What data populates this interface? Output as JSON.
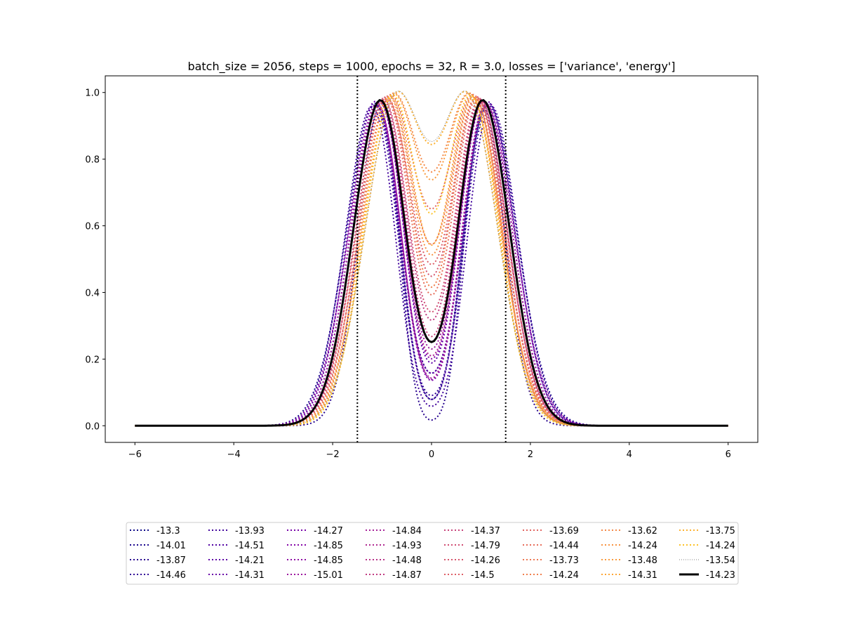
{
  "chart_data": {
    "type": "line",
    "title": "batch_size = 2056, steps = 1000, epochs = 32, R = 3.0, losses = ['variance', 'energy']",
    "xlabel": "",
    "ylabel": "",
    "xlim": [
      -6.6,
      6.6
    ],
    "ylim": [
      -0.05,
      1.05
    ],
    "xticks": [
      -6,
      -4,
      -2,
      0,
      2,
      4,
      6
    ],
    "yticks": [
      0.0,
      0.2,
      0.4,
      0.6,
      0.8,
      1.0
    ],
    "xtick_labels": [
      "−6",
      "−4",
      "−2",
      "0",
      "2",
      "4",
      "6"
    ],
    "ytick_labels": [
      "0.0",
      "0.2",
      "0.4",
      "0.6",
      "0.8",
      "1.0"
    ],
    "grid": false,
    "legend_position": "below",
    "vlines": [
      -1.5,
      1.5
    ],
    "series": [
      {
        "name": "-13.3",
        "color": "#0d0887",
        "style": "dotted",
        "c": 1.05,
        "w": 0.8,
        "d": 0.78
      },
      {
        "name": "-14.01",
        "color": "#1b068d",
        "style": "dotted",
        "c": 1.1,
        "w": 0.85,
        "d": 0.58
      },
      {
        "name": "-13.87",
        "color": "#28058f",
        "style": "dotted",
        "c": 1.0,
        "w": 0.65,
        "d": 0.91
      },
      {
        "name": "-14.46",
        "color": "#330597",
        "style": "dotted",
        "c": 1.1,
        "w": 0.8,
        "d": 0.7
      },
      {
        "name": "-13.93",
        "color": "#41049d",
        "style": "dotted",
        "c": 1.15,
        "w": 0.8,
        "d": 0.77
      },
      {
        "name": "-14.51",
        "color": "#5102a3",
        "style": "dotted",
        "c": 1.05,
        "w": 0.75,
        "d": 0.72
      },
      {
        "name": "-14.21",
        "color": "#5e01a6",
        "style": "dotted",
        "c": 1.0,
        "w": 0.8,
        "d": 0.55
      },
      {
        "name": "-14.31",
        "color": "#6a00a8",
        "style": "dotted",
        "c": 1.1,
        "w": 0.8,
        "d": 0.48
      },
      {
        "name": "-14.27",
        "color": "#7701a8",
        "style": "dotted",
        "c": 1.05,
        "w": 0.8,
        "d": 0.62
      },
      {
        "name": "-14.85",
        "color": "#8405a7",
        "style": "dotted",
        "c": 1.0,
        "w": 0.8,
        "d": 0.52
      },
      {
        "name": "-14.85",
        "color": "#8f0da4",
        "style": "dotted",
        "c": 1.05,
        "w": 0.85,
        "d": 0.68
      },
      {
        "name": "-15.01",
        "color": "#9c179e",
        "style": "dotted",
        "c": 1.0,
        "w": 0.8,
        "d": 0.45
      },
      {
        "name": "-14.84",
        "color": "#a62098",
        "style": "dotted",
        "c": 1.05,
        "w": 0.8,
        "d": 0.6
      },
      {
        "name": "-14.93",
        "color": "#b02991",
        "style": "dotted",
        "c": 1.0,
        "w": 0.8,
        "d": 0.5
      },
      {
        "name": "-14.48",
        "color": "#b83289",
        "style": "dotted",
        "c": 1.0,
        "w": 0.8,
        "d": 0.4
      },
      {
        "name": "-14.87",
        "color": "#c13b82",
        "style": "dotted",
        "c": 0.95,
        "w": 0.8,
        "d": 0.35
      },
      {
        "name": "-14.37",
        "color": "#c8437b",
        "style": "dotted",
        "c": 0.95,
        "w": 0.8,
        "d": 0.45
      },
      {
        "name": "-14.79",
        "color": "#d04d73",
        "style": "dotted",
        "c": 0.95,
        "w": 0.8,
        "d": 0.3
      },
      {
        "name": "-14.26",
        "color": "#d6556d",
        "style": "dotted",
        "c": 0.9,
        "w": 0.8,
        "d": 0.2
      },
      {
        "name": "-14.5",
        "color": "#dd5e66",
        "style": "dotted",
        "c": 0.9,
        "w": 0.85,
        "d": 0.25
      },
      {
        "name": "-13.69",
        "color": "#e26561",
        "style": "dotted",
        "c": 0.85,
        "w": 0.85,
        "d": 0.1
      },
      {
        "name": "-14.44",
        "color": "#e76e5b",
        "style": "dotted",
        "c": 0.9,
        "w": 0.8,
        "d": 0.3
      },
      {
        "name": "-13.73",
        "color": "#ec7853",
        "style": "dotted",
        "c": 0.85,
        "w": 0.8,
        "d": 0.15
      },
      {
        "name": "-14.24",
        "color": "#f0804e",
        "style": "dotted",
        "c": 0.85,
        "w": 0.8,
        "d": 0.35
      },
      {
        "name": "-13.62",
        "color": "#f48948",
        "style": "dotted",
        "c": 0.8,
        "w": 0.85,
        "d": 0.05
      },
      {
        "name": "-14.24",
        "color": "#f79342",
        "style": "dotted",
        "c": 0.85,
        "w": 0.8,
        "d": 0.2
      },
      {
        "name": "-13.48",
        "color": "#f99b3e",
        "style": "dotted",
        "c": 0.8,
        "w": 0.85,
        "d": 0.08
      },
      {
        "name": "-14.31",
        "color": "#fca636",
        "style": "dotted",
        "c": 0.8,
        "w": 0.8,
        "d": 0.25
      },
      {
        "name": "-13.75",
        "color": "#fdb130",
        "style": "dotted",
        "c": 0.75,
        "w": 0.85,
        "d": 0.04
      },
      {
        "name": "-14.24",
        "color": "#fdc328",
        "style": "dotted",
        "c": 0.8,
        "w": 0.8,
        "d": 0.12
      },
      {
        "name": "-13.54",
        "color": "#808080",
        "style": "thin-dotted",
        "c": 0.75,
        "w": 0.85,
        "d": 0.03
      },
      {
        "name": "-14.23",
        "color": "#000000",
        "style": "solid",
        "c": 1.0,
        "w": 0.8,
        "d": 0.4
      }
    ]
  }
}
